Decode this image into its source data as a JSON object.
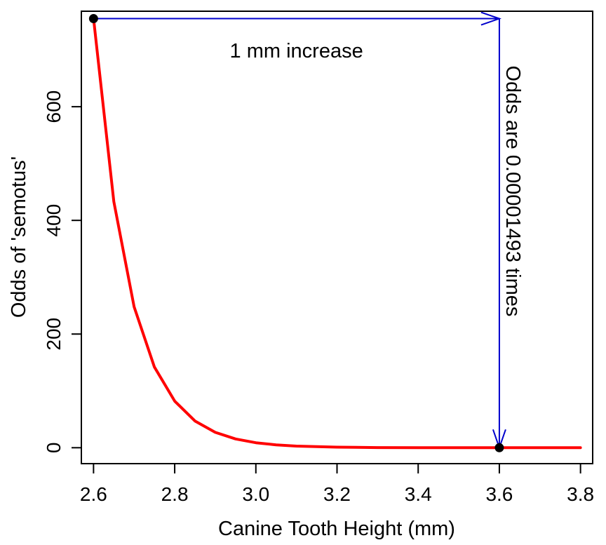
{
  "chart_data": {
    "type": "line",
    "title": "",
    "xlabel": "Canine Tooth Height (mm)",
    "ylabel": "Odds of 'semotus'",
    "xlim": [
      2.57,
      3.83
    ],
    "ylim": [
      -28,
      768
    ],
    "x_ticks": [
      2.6,
      2.8,
      3.0,
      3.2,
      3.4,
      3.6,
      3.8
    ],
    "x_tick_labels": [
      "2.6",
      "2.8",
      "3.0",
      "3.2",
      "3.4",
      "3.6",
      "3.8"
    ],
    "y_ticks": [
      0,
      200,
      400,
      600
    ],
    "y_tick_labels": [
      "0",
      "200",
      "400",
      "600"
    ],
    "grid": false,
    "series": [
      {
        "color": "#ff0000",
        "x": [
          2.6,
          2.65,
          2.7,
          2.75,
          2.8,
          2.85,
          2.9,
          2.95,
          3.0,
          3.05,
          3.1,
          3.2,
          3.3,
          3.4,
          3.5,
          3.6,
          3.7,
          3.8
        ],
        "y": [
          755,
          433,
          248,
          142,
          82,
          47,
          27,
          15.4,
          8.8,
          5.1,
          2.9,
          0.95,
          0.31,
          0.1,
          0.035,
          0.011,
          0.004,
          0.001
        ]
      }
    ],
    "points": [
      {
        "x": 2.6,
        "y": 755
      },
      {
        "x": 3.6,
        "y": 0.011
      }
    ],
    "annotations": {
      "horizontal_arrow": {
        "x_from": 2.6,
        "x_to": 3.6,
        "y": 755,
        "label": "1 mm increase",
        "color": "#0000cc"
      },
      "vertical_arrow": {
        "x": 3.6,
        "y_from": 755,
        "y_to": 0.011,
        "label": "Odds are 0.00001493 times",
        "color": "#0000cc"
      }
    }
  }
}
